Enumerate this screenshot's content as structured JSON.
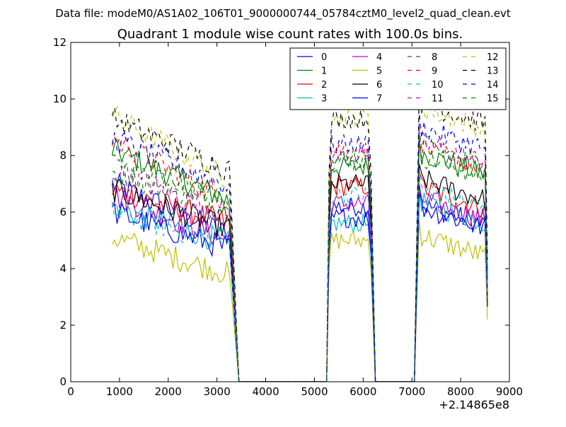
{
  "figure": {
    "suptitle": "Data file: modeM0/AS1A02_106T01_9000000744_05784cztM0_level2_quad_clean.evt"
  },
  "chart_data": {
    "type": "line",
    "title": "Quadrant 1 module wise count rates with 100.0s bins.",
    "xlabel": "",
    "ylabel": "",
    "x_offset_label": "+2.14865e8",
    "xlim": [
      0,
      9000
    ],
    "ylim": [
      0,
      12
    ],
    "xticks": [
      0,
      1000,
      2000,
      3000,
      4000,
      5000,
      6000,
      7000,
      8000,
      9000
    ],
    "yticks": [
      0,
      2,
      4,
      6,
      8,
      10,
      12
    ],
    "grid": false,
    "legend_position": "top-right",
    "segments": [
      {
        "start": 850,
        "end": 3250,
        "drop_to": 3450
      },
      {
        "start": 5300,
        "end": 6100,
        "drop_from": 5250,
        "drop_to": 6250
      },
      {
        "start": 7150,
        "end": 8550,
        "drop_from": 7050
      }
    ],
    "series": [
      {
        "name": "0",
        "style": "solid",
        "color": "#0000ff",
        "levels": [
          7.0,
          5.2,
          6.2,
          6.0
        ]
      },
      {
        "name": "1",
        "style": "solid",
        "color": "#008000",
        "levels": [
          8.2,
          6.4,
          7.6,
          7.8
        ]
      },
      {
        "name": "2",
        "style": "solid",
        "color": "#ff0000",
        "levels": [
          6.8,
          5.6,
          6.9,
          6.6
        ]
      },
      {
        "name": "3",
        "style": "solid",
        "color": "#00bfbf",
        "levels": [
          6.2,
          4.9,
          5.6,
          6.1
        ]
      },
      {
        "name": "4",
        "style": "solid",
        "color": "#bf00bf",
        "levels": [
          6.6,
          5.0,
          6.3,
          6.2
        ]
      },
      {
        "name": "5",
        "style": "solid",
        "color": "#bfbf00",
        "levels": [
          5.1,
          3.8,
          5.0,
          4.9
        ]
      },
      {
        "name": "6",
        "style": "solid",
        "color": "#000000",
        "levels": [
          6.8,
          5.4,
          7.0,
          6.9
        ]
      },
      {
        "name": "7",
        "style": "solid",
        "color": "#0000ff",
        "levels": [
          6.0,
          4.7,
          5.8,
          5.9
        ]
      },
      {
        "name": "8",
        "style": "dashed",
        "color": "#008000",
        "levels": [
          7.4,
          6.1,
          7.8,
          7.7
        ]
      },
      {
        "name": "9",
        "style": "dashed",
        "color": "#ff0000",
        "levels": [
          8.6,
          6.4,
          8.2,
          8.0
        ]
      },
      {
        "name": "10",
        "style": "dashed",
        "color": "#00bfbf",
        "levels": [
          6.0,
          4.9,
          6.6,
          6.6
        ]
      },
      {
        "name": "11",
        "style": "dashed",
        "color": "#bf00bf",
        "levels": [
          7.4,
          5.9,
          8.0,
          8.2
        ]
      },
      {
        "name": "12",
        "style": "dashed",
        "color": "#bfbf00",
        "levels": [
          9.4,
          7.2,
          9.3,
          9.4
        ]
      },
      {
        "name": "13",
        "style": "dashed",
        "color": "#000000",
        "levels": [
          9.3,
          7.5,
          9.3,
          9.6
        ]
      },
      {
        "name": "14",
        "style": "dashed",
        "color": "#0000ff",
        "levels": [
          8.6,
          6.9,
          8.4,
          8.7
        ]
      },
      {
        "name": "15",
        "style": "dashed",
        "color": "#008000",
        "levels": [
          7.7,
          6.5,
          7.9,
          8.1
        ]
      }
    ]
  }
}
